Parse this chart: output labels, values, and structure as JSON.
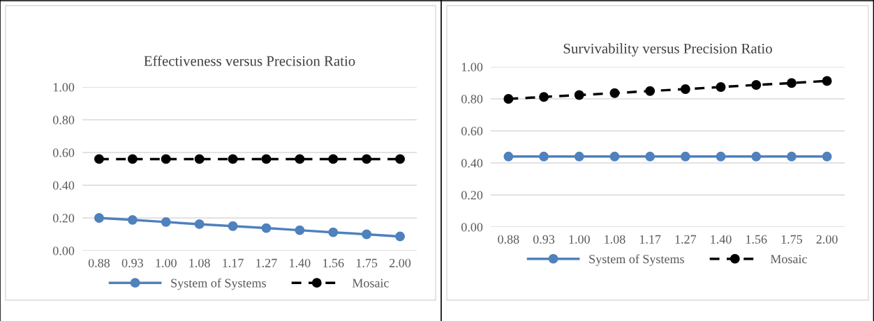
{
  "chart_data": [
    {
      "type": "line",
      "title": "Effectiveness versus Precision Ratio",
      "categories": [
        "0.88",
        "0.93",
        "1.00",
        "1.08",
        "1.17",
        "1.27",
        "1.40",
        "1.56",
        "1.75",
        "2.00"
      ],
      "series": [
        {
          "name": "System of Systems",
          "color": "#4f81bd",
          "marker": "circle",
          "line_style": "solid",
          "values": [
            0.2,
            0.188,
            0.175,
            0.162,
            0.15,
            0.138,
            0.125,
            0.112,
            0.1,
            0.087
          ]
        },
        {
          "name": "Mosaic",
          "color": "#000000",
          "marker": "circle",
          "line_style": "dashed",
          "values": [
            0.56,
            0.56,
            0.56,
            0.56,
            0.56,
            0.56,
            0.56,
            0.56,
            0.56,
            0.56
          ]
        }
      ],
      "ylim": [
        0,
        1
      ],
      "yticks": [
        {
          "value": 0,
          "label": "0.00"
        },
        {
          "value": 0.2,
          "label": "0.20"
        },
        {
          "value": 0.4,
          "label": "0.40"
        },
        {
          "value": 0.6,
          "label": "0.60"
        },
        {
          "value": 0.8,
          "label": "0.80"
        },
        {
          "value": 1,
          "label": "1.00"
        }
      ],
      "grid": "y",
      "legend": "bottom"
    },
    {
      "type": "line",
      "title": "Survivability versus Precision Ratio",
      "categories": [
        "0.88",
        "0.93",
        "1.00",
        "1.08",
        "1.17",
        "1.27",
        "1.40",
        "1.56",
        "1.75",
        "2.00"
      ],
      "series": [
        {
          "name": "System of Systems",
          "color": "#4f81bd",
          "marker": "circle",
          "line_style": "solid",
          "values": [
            0.44,
            0.44,
            0.44,
            0.44,
            0.44,
            0.44,
            0.44,
            0.44,
            0.44,
            0.44
          ]
        },
        {
          "name": "Mosaic",
          "color": "#000000",
          "marker": "circle",
          "line_style": "dashed",
          "values": [
            0.8,
            0.812,
            0.824,
            0.836,
            0.849,
            0.861,
            0.874,
            0.887,
            0.899,
            0.912
          ]
        }
      ],
      "ylim": [
        0,
        1
      ],
      "yticks": [
        {
          "value": 0,
          "label": "0.00"
        },
        {
          "value": 0.2,
          "label": "0.20"
        },
        {
          "value": 0.4,
          "label": "0.40"
        },
        {
          "value": 0.6,
          "label": "0.60"
        },
        {
          "value": 0.8,
          "label": "0.80"
        },
        {
          "value": 1,
          "label": "1.00"
        }
      ],
      "grid": "y",
      "legend": "bottom"
    }
  ]
}
